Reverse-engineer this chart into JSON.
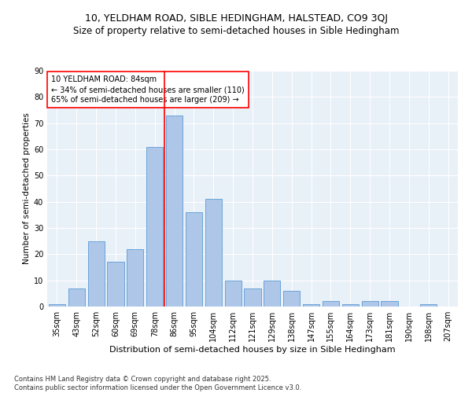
{
  "title1": "10, YELDHAM ROAD, SIBLE HEDINGHAM, HALSTEAD, CO9 3QJ",
  "title2": "Size of property relative to semi-detached houses in Sible Hedingham",
  "xlabel": "Distribution of semi-detached houses by size in Sible Hedingham",
  "ylabel": "Number of semi-detached properties",
  "categories": [
    "35sqm",
    "43sqm",
    "52sqm",
    "60sqm",
    "69sqm",
    "78sqm",
    "86sqm",
    "95sqm",
    "104sqm",
    "112sqm",
    "121sqm",
    "129sqm",
    "138sqm",
    "147sqm",
    "155sqm",
    "164sqm",
    "173sqm",
    "181sqm",
    "190sqm",
    "198sqm",
    "207sqm"
  ],
  "values": [
    1,
    7,
    25,
    17,
    22,
    61,
    73,
    36,
    41,
    10,
    7,
    10,
    6,
    1,
    2,
    1,
    2,
    2,
    0,
    1,
    0
  ],
  "bar_color": "#aec6e8",
  "bar_edge_color": "#5b9bd5",
  "vline_x": 5.5,
  "vline_color": "red",
  "annotation_title": "10 YELDHAM ROAD: 84sqm",
  "annotation_line1": "← 34% of semi-detached houses are smaller (110)",
  "annotation_line2": "65% of semi-detached houses are larger (209) →",
  "box_color": "red",
  "ylim": [
    0,
    90
  ],
  "yticks": [
    0,
    10,
    20,
    30,
    40,
    50,
    60,
    70,
    80,
    90
  ],
  "bg_color": "#e8f0f8",
  "footer": "Contains HM Land Registry data © Crown copyright and database right 2025.\nContains public sector information licensed under the Open Government Licence v3.0.",
  "title1_fontsize": 9,
  "title2_fontsize": 8.5,
  "xlabel_fontsize": 8,
  "ylabel_fontsize": 7.5,
  "tick_fontsize": 7,
  "annotation_fontsize": 7,
  "footer_fontsize": 6
}
